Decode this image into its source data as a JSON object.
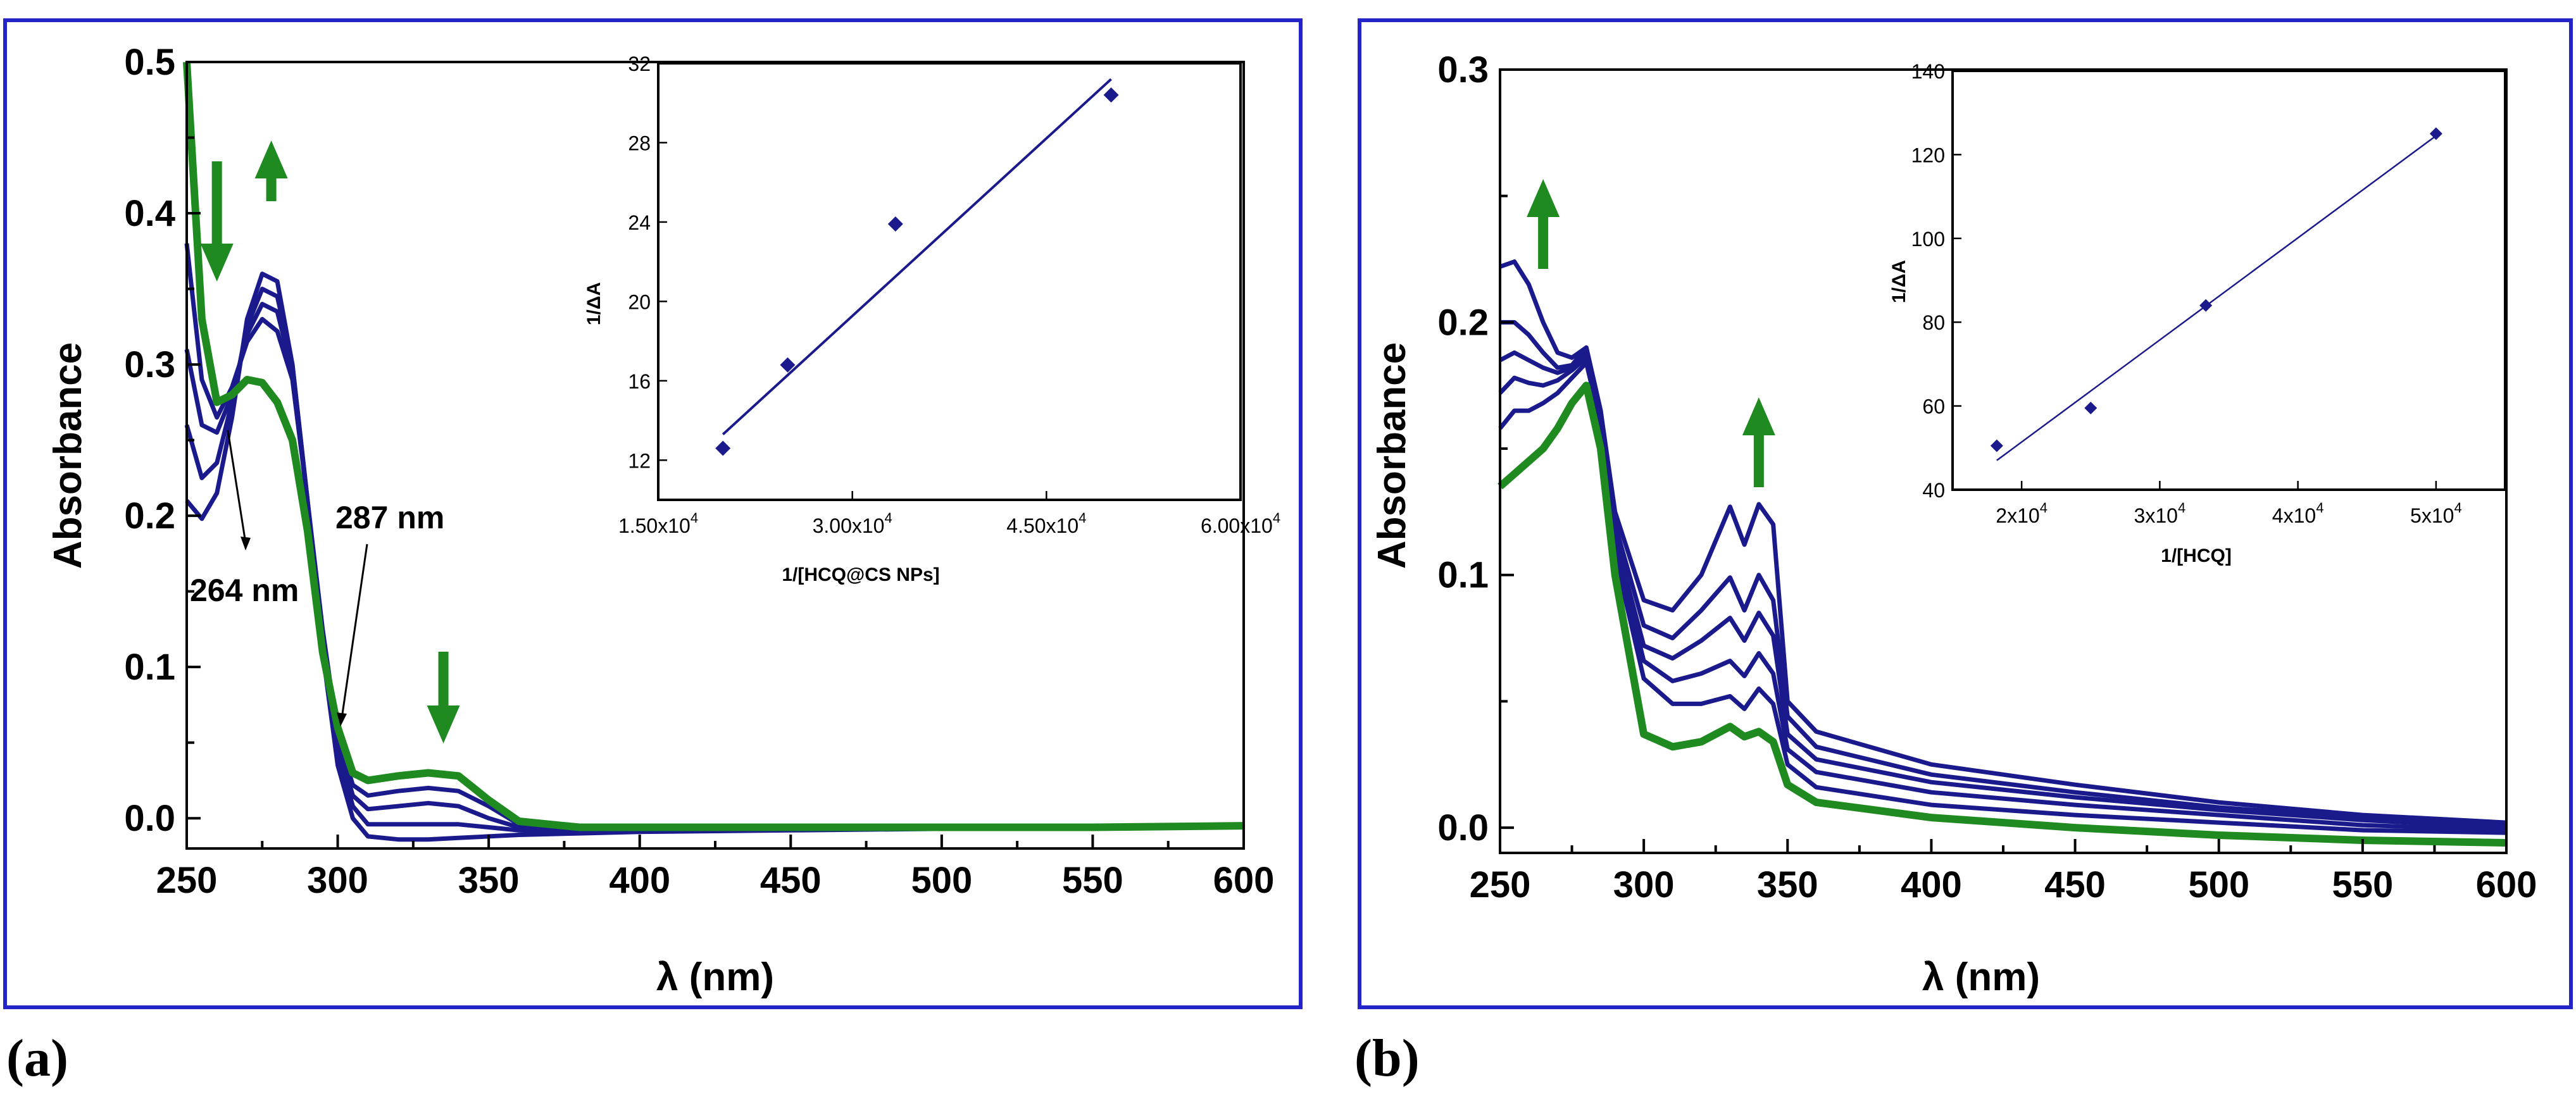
{
  "panels": [
    {
      "label": "(a)"
    },
    {
      "label": "(b)"
    }
  ],
  "colors": {
    "frame": "#2424c8",
    "titration_series": "#1a1a8c",
    "final_spectrum": "#1f8a1f",
    "arrows": "#1f8a1f"
  },
  "chart_data": [
    {
      "type": "line",
      "panel": "(a)",
      "xlabel": "λ (nm)",
      "ylabel": "Absorbance",
      "xlim": [
        250,
        600
      ],
      "ylim": [
        -0.02,
        0.5
      ],
      "xticks": [
        "250",
        "300",
        "350",
        "400",
        "450",
        "500",
        "550",
        "600"
      ],
      "yticks": [
        "0.0",
        "0.1",
        "0.2",
        "0.3",
        "0.4",
        "0.5"
      ],
      "annotations": [
        "264 nm",
        "287 nm"
      ],
      "arrows": [
        {
          "x": 260,
          "direction": "down"
        },
        {
          "x": 278,
          "direction": "up"
        },
        {
          "x": 335,
          "direction": "down"
        }
      ],
      "x": [
        250,
        255,
        260,
        265,
        270,
        275,
        280,
        285,
        290,
        295,
        300,
        305,
        310,
        320,
        330,
        340,
        350,
        360,
        380,
        400,
        450,
        500,
        550,
        600
      ],
      "series": [
        {
          "color": "#1a1a8c",
          "values": [
            0.21,
            0.198,
            0.215,
            0.265,
            0.33,
            0.36,
            0.355,
            0.3,
            0.21,
            0.11,
            0.035,
            0.0,
            -0.012,
            -0.014,
            -0.014,
            -0.013,
            -0.012,
            -0.011,
            -0.01,
            -0.009,
            -0.008,
            -0.007,
            -0.006,
            -0.006
          ]
        },
        {
          "color": "#1a1a8c",
          "values": [
            0.26,
            0.225,
            0.235,
            0.275,
            0.325,
            0.35,
            0.345,
            0.3,
            0.21,
            0.115,
            0.045,
            0.008,
            -0.004,
            -0.004,
            -0.004,
            -0.004,
            -0.006,
            -0.008,
            -0.009,
            -0.008,
            -0.007,
            -0.007,
            -0.006,
            -0.006
          ]
        },
        {
          "color": "#1a1a8c",
          "values": [
            0.31,
            0.26,
            0.255,
            0.28,
            0.32,
            0.34,
            0.335,
            0.295,
            0.21,
            0.12,
            0.05,
            0.015,
            0.006,
            0.008,
            0.01,
            0.008,
            0.0,
            -0.006,
            -0.008,
            -0.007,
            -0.007,
            -0.006,
            -0.006,
            -0.006
          ]
        },
        {
          "color": "#1a1a8c",
          "values": [
            0.38,
            0.29,
            0.265,
            0.285,
            0.315,
            0.33,
            0.322,
            0.29,
            0.21,
            0.125,
            0.055,
            0.022,
            0.015,
            0.018,
            0.02,
            0.018,
            0.008,
            -0.004,
            -0.007,
            -0.007,
            -0.007,
            -0.006,
            -0.006,
            -0.006
          ]
        },
        {
          "color": "#1f8a1f",
          "values": [
            0.5,
            0.33,
            0.275,
            0.28,
            0.29,
            0.288,
            0.275,
            0.25,
            0.19,
            0.11,
            0.06,
            0.03,
            0.025,
            0.028,
            0.03,
            0.028,
            0.012,
            -0.002,
            -0.006,
            -0.006,
            -0.006,
            -0.006,
            -0.006,
            -0.005
          ]
        }
      ],
      "inset": {
        "type": "scatter",
        "xlabel": "1/[HCQ@CS NPs]",
        "ylabel": "1/ΔA",
        "xlim": [
          15000,
          60000
        ],
        "ylim": [
          10,
          32
        ],
        "xticks": [
          {
            "base": "1.50x10",
            "exp": "4"
          },
          {
            "base": "3.00x10",
            "exp": "4"
          },
          {
            "base": "4.50x10",
            "exp": "4"
          },
          {
            "base": "6.00x10",
            "exp": "4"
          }
        ],
        "yticks": [
          "12",
          "16",
          "20",
          "24",
          "28",
          "32"
        ],
        "x": [
          20000,
          25000,
          33333,
          50000
        ],
        "y": [
          12.6,
          16.8,
          23.9,
          30.4
        ],
        "fit": {
          "x": [
            20000,
            50000
          ],
          "y": [
            13.3,
            31.2
          ]
        }
      }
    },
    {
      "type": "line",
      "panel": "(b)",
      "xlabel": "λ (nm)",
      "ylabel": "Absorbance",
      "xlim": [
        250,
        600
      ],
      "ylim": [
        -0.01,
        0.3
      ],
      "xticks": [
        "250",
        "300",
        "350",
        "400",
        "450",
        "500",
        "550",
        "600"
      ],
      "yticks": [
        "0.0",
        "0.1",
        "0.2",
        "0.3"
      ],
      "arrows": [
        {
          "x": 265,
          "direction": "up"
        },
        {
          "x": 340,
          "direction": "up"
        }
      ],
      "x": [
        250,
        255,
        260,
        265,
        270,
        275,
        280,
        285,
        290,
        300,
        310,
        320,
        330,
        335,
        340,
        345,
        350,
        360,
        400,
        450,
        500,
        550,
        600
      ],
      "series": [
        {
          "color": "#1a1a8c",
          "values": [
            0.222,
            0.224,
            0.215,
            0.2,
            0.188,
            0.186,
            0.19,
            0.165,
            0.125,
            0.09,
            0.086,
            0.1,
            0.127,
            0.112,
            0.128,
            0.12,
            0.05,
            0.038,
            0.025,
            0.017,
            0.01,
            0.005,
            0.002
          ]
        },
        {
          "color": "#1a1a8c",
          "values": [
            0.2,
            0.2,
            0.195,
            0.188,
            0.182,
            0.183,
            0.19,
            0.165,
            0.12,
            0.08,
            0.075,
            0.086,
            0.099,
            0.086,
            0.1,
            0.09,
            0.044,
            0.032,
            0.021,
            0.014,
            0.008,
            0.004,
            0.001
          ]
        },
        {
          "color": "#1a1a8c",
          "values": [
            0.185,
            0.188,
            0.185,
            0.182,
            0.18,
            0.182,
            0.188,
            0.164,
            0.115,
            0.072,
            0.067,
            0.074,
            0.083,
            0.074,
            0.085,
            0.076,
            0.037,
            0.027,
            0.018,
            0.012,
            0.007,
            0.003,
            0.0
          ]
        },
        {
          "color": "#1a1a8c",
          "values": [
            0.172,
            0.178,
            0.176,
            0.175,
            0.177,
            0.181,
            0.186,
            0.162,
            0.112,
            0.066,
            0.058,
            0.061,
            0.066,
            0.06,
            0.069,
            0.061,
            0.031,
            0.022,
            0.014,
            0.009,
            0.005,
            0.001,
            -0.001
          ]
        },
        {
          "color": "#1a1a8c",
          "values": [
            0.158,
            0.165,
            0.165,
            0.168,
            0.172,
            0.178,
            0.184,
            0.16,
            0.108,
            0.059,
            0.049,
            0.049,
            0.052,
            0.047,
            0.055,
            0.049,
            0.025,
            0.016,
            0.009,
            0.005,
            0.002,
            -0.001,
            -0.002
          ]
        },
        {
          "color": "#1f8a1f",
          "values": [
            0.135,
            0.14,
            0.145,
            0.15,
            0.158,
            0.168,
            0.175,
            0.15,
            0.1,
            0.037,
            0.032,
            0.034,
            0.04,
            0.036,
            0.038,
            0.034,
            0.017,
            0.01,
            0.004,
            0.0,
            -0.003,
            -0.005,
            -0.006
          ]
        }
      ],
      "inset": {
        "type": "scatter",
        "xlabel": "1/[HCQ]",
        "ylabel": "1/ΔA",
        "xlim": [
          15000,
          55000
        ],
        "ylim": [
          40,
          140
        ],
        "xticks": [
          {
            "base": "2x10",
            "exp": "4"
          },
          {
            "base": "3x10",
            "exp": "4"
          },
          {
            "base": "4x10",
            "exp": "4"
          },
          {
            "base": "5x10",
            "exp": "4"
          }
        ],
        "yticks": [
          "40",
          "60",
          "80",
          "100",
          "120",
          "140"
        ],
        "x": [
          18200,
          25000,
          33333,
          50000
        ],
        "y": [
          50.5,
          59.5,
          84,
          125
        ],
        "fit": {
          "x": [
            18200,
            50000
          ],
          "y": [
            47,
            124.5
          ]
        }
      }
    }
  ]
}
